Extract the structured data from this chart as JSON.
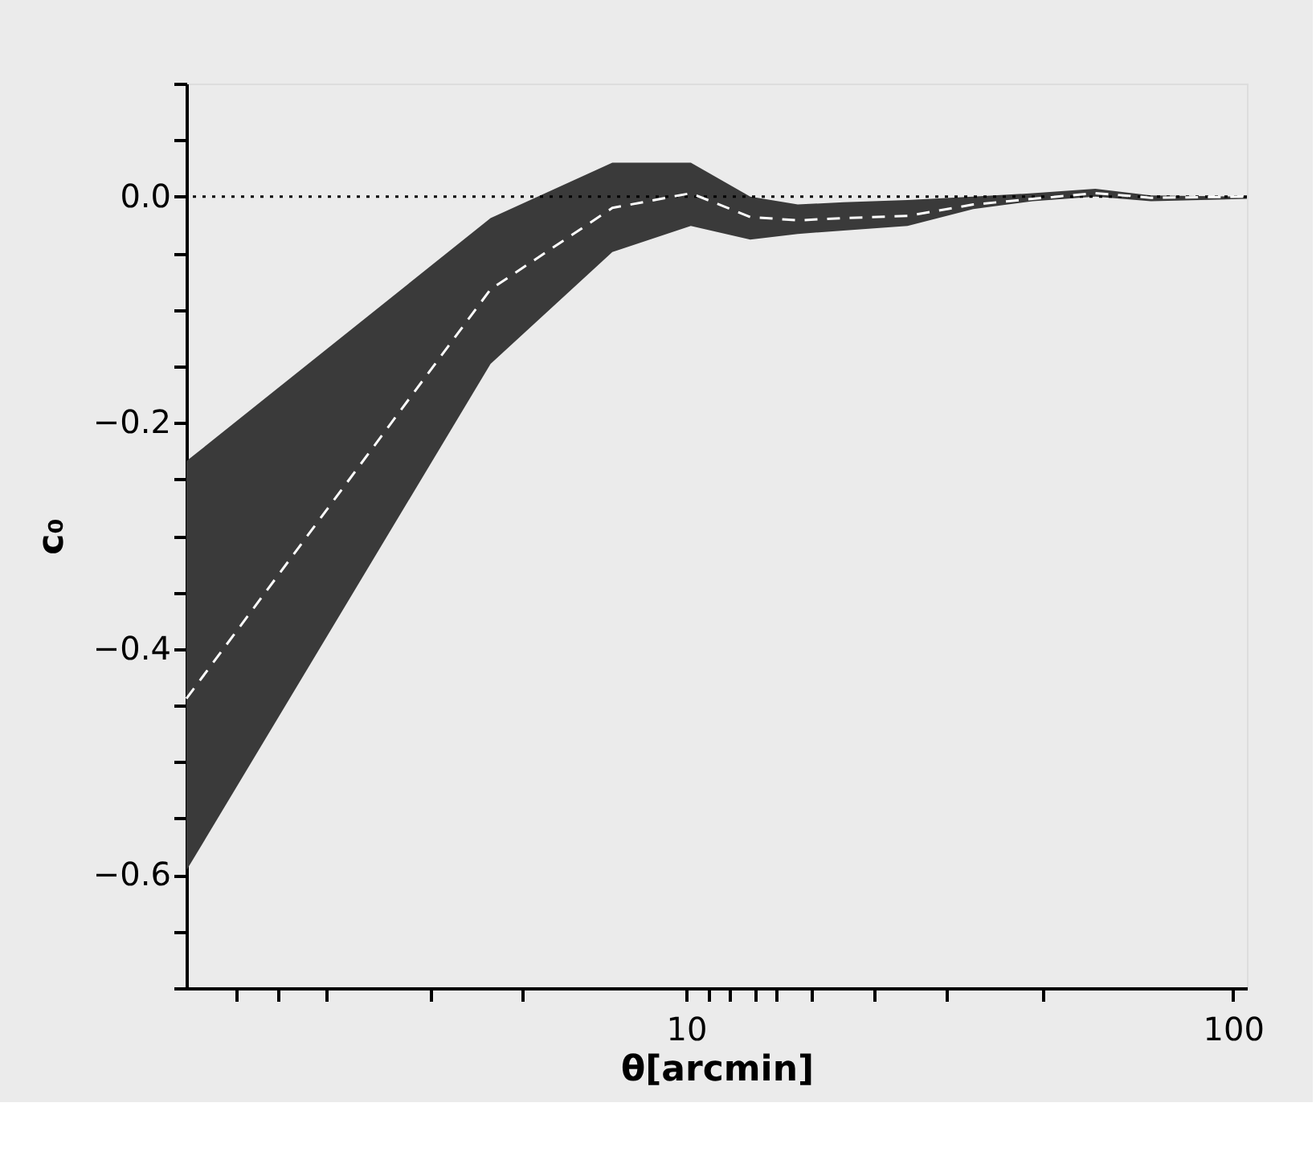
{
  "chart_data": {
    "type": "line",
    "xlabel": "θ[arcmin]",
    "ylabel": "c₀",
    "log": "x",
    "x": [
      1.22,
      4.39,
      7.33,
      10.2,
      13.1,
      16.0,
      19.4,
      25.4,
      33.5,
      43.0,
      56.0,
      70.8,
      106
    ],
    "series": [
      {
        "color": "#ffffff",
        "line_style": "dashed",
        "values": [
          -0.444,
          -0.082,
          -0.01,
          0.003,
          -0.018,
          -0.021,
          -0.019,
          -0.017,
          -0.007,
          -0.002,
          0.003,
          -0.001,
          0.0
        ],
        "lower": [
          -0.596,
          -0.148,
          -0.049,
          -0.026,
          -0.038,
          -0.033,
          -0.03,
          -0.026,
          -0.011,
          -0.004,
          0.0,
          -0.004,
          -0.002
        ],
        "upper": [
          -0.234,
          -0.019,
          0.03,
          0.03,
          0.0,
          -0.007,
          -0.005,
          -0.003,
          0.0,
          0.003,
          0.007,
          0.001,
          0.0
        ]
      }
    ],
    "xlim": [
      1.22,
      106
    ],
    "ylim": [
      -0.7,
      0.1
    ],
    "xticks": [
      {
        "value": 1.5,
        "label": null
      },
      {
        "value": 1.8,
        "label": null
      },
      {
        "value": 2.2,
        "label": null
      },
      {
        "value": 3.4,
        "label": null
      },
      {
        "value": 5,
        "label": null
      },
      10,
      {
        "value": 11,
        "label": null
      },
      {
        "value": 12,
        "label": null
      },
      {
        "value": 13.4,
        "label": null
      },
      {
        "value": 14.6,
        "label": null
      },
      {
        "value": 17,
        "label": null
      },
      {
        "value": 22,
        "label": null
      },
      {
        "value": 30,
        "label": null
      },
      {
        "value": 45,
        "label": null
      },
      100
    ],
    "yticks": [
      {
        "value": -0.7,
        "label": null
      },
      {
        "value": -0.65,
        "label": null
      },
      {
        "value": -0.6,
        "label": "−0.6"
      },
      {
        "value": -0.55,
        "label": null
      },
      {
        "value": -0.5,
        "label": null
      },
      {
        "value": -0.45,
        "label": null
      },
      {
        "value": -0.4,
        "label": "−0.4"
      },
      {
        "value": -0.35,
        "label": null
      },
      {
        "value": -0.3,
        "label": null
      },
      {
        "value": -0.25,
        "label": null
      },
      {
        "value": -0.2,
        "label": "−0.2"
      },
      {
        "value": -0.15,
        "label": null
      },
      {
        "value": -0.1,
        "label": null
      },
      {
        "value": -0.05,
        "label": null
      },
      {
        "value": 0,
        "label": "0.0"
      },
      {
        "value": 0.05,
        "label": null
      },
      {
        "value": 0.1,
        "label": null
      }
    ],
    "ref_lines": [
      {
        "axis": "y",
        "value": 0,
        "color": "#000000",
        "line_style": "dotted"
      }
    ],
    "grid": false
  }
}
